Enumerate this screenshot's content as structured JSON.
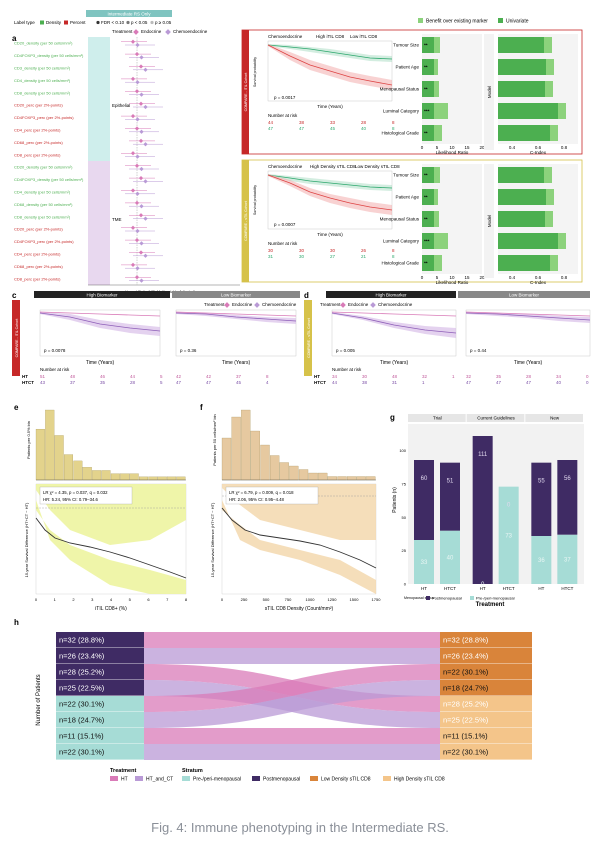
{
  "caption": "Fig. 4: Immune phenotyping in the Intermediate RS.",
  "panel_a": {
    "label": "a",
    "header": "Intermediate RS Only",
    "legend_label_type": "Label type",
    "legend_density": "Density",
    "legend_percent": "Percent",
    "legend_fdr": "FDR < 0.10",
    "legend_p05": "p < 0.05",
    "legend_p005": "p ≥ 0.05",
    "treatment_label": "Treatment",
    "treat_endocrine": "Endocrine",
    "treat_chemo": "Chemoendocrine",
    "group_epithelial": "Epithelial",
    "group_tme": "TME",
    "xaxis_label": "Hazard Ratio (HR; Multivariable Adjusted)",
    "rows": [
      "CD20_density (per 50 cells/mm²)",
      "CD4FOXP3_density (per 50 cells/mm²)",
      "CD3_density (per 50 cells/mm²)",
      "CD4_density (per 50 cells/mm²)",
      "CD8_density (per 50 cells/mm²)",
      "CD20_perc (per 2%-points)",
      "CD4FOXP3_perc (per 2%-points)",
      "CD4_perc (per 2%-points)",
      "CD68_perc (per 2%-points)",
      "CD8_perc (per 2%-points)",
      "CD20_density (per 50 cells/mm²)",
      "CD4FOXP3_density (per 50 cells/mm²)",
      "CD4_density (per 50 cells/mm²)",
      "CD68_density (per 50 cells/mm²)",
      "CD8_density (per 50 cells/mm²)",
      "CD20_perc (per 2%-points)",
      "CD4FOXP3_perc (per 2%-points)",
      "CD4_perc (per 2%-points)",
      "CD68_perc (per 2%-points)",
      "CD8_perc (per 2%-points)"
    ]
  },
  "panel_b": {
    "label": "b",
    "legend_benefit": "Benefit over existing marker",
    "legend_univariate": "Univariate",
    "km_top": {
      "title": "Chemoendocrine",
      "legend_high": "High iTIL CD8",
      "legend_low": "Low iTIL CD8",
      "p_value": "p = 0.0017",
      "side_label": "COMPARE - iTIL Cohort",
      "xlabel": "Time (Years)",
      "ylabel": "Survival probability",
      "risk_title": "Number at risk",
      "risk_high": [
        44,
        38,
        33,
        28,
        8
      ],
      "risk_low": [
        47,
        47,
        45,
        40,
        8
      ]
    },
    "km_bottom": {
      "title": "Chemoendocrine",
      "legend_high": "High Density sTIL CD8",
      "legend_low": "Low Density sTIL CD8",
      "p_value": "p = 0.0007",
      "side_label": "COMPARE - sTIL Cohort",
      "xlabel": "Time (Years)",
      "ylabel": "Survival probability",
      "risk_title": "Number at risk",
      "risk_high": [
        30,
        30,
        30,
        26,
        8
      ],
      "risk_low": [
        31,
        30,
        27,
        21,
        8
      ]
    },
    "lr_categories": [
      "Tumour Size",
      "Patient Age",
      "Menopausal Status",
      "Luminal Category",
      "Histological Grade"
    ],
    "lr_xlabel": "Likelihood Ratio",
    "cidx_xlabel": "C-Index",
    "model_label": "Model",
    "lr_top_stars": [
      "**",
      "**",
      "**",
      "***",
      "**"
    ],
    "lr_bottom_stars": [
      "**",
      "**",
      "**",
      "***",
      "**"
    ],
    "lr_ticks": [
      "0",
      "5",
      "10",
      "15",
      "20"
    ],
    "cidx_ticks": [
      "0.4",
      "0.6",
      "0.8"
    ]
  },
  "panel_c": {
    "label": "c",
    "high_title": "High Biomarker",
    "low_title": "Low Biomarker",
    "treatment_label": "Treatment",
    "treat_endocrine": "Endocrine",
    "treat_chemo": "Chemoendocrine",
    "side_label": "COMPARE - iTIL Cohort",
    "xlabel": "Time (Years)",
    "ylabel": "Survival probability",
    "p_high": "p = 0.0078",
    "p_low": "p = 0.36",
    "risk_title": "Number at risk",
    "risk_row_ht": "HT",
    "risk_row_htct": "HTCT",
    "risk_high_ht": [
      51,
      48,
      46,
      44,
      5
    ],
    "risk_high_htct": [
      43,
      37,
      35,
      28,
      5
    ],
    "risk_low_ht": [
      42,
      42,
      37,
      8
    ],
    "risk_low_htct": [
      47,
      47,
      45,
      4
    ]
  },
  "panel_d": {
    "label": "d",
    "high_title": "High Biomarker",
    "low_title": "Low Biomarker",
    "treatment_label": "Treatment",
    "treat_endocrine": "Endocrine",
    "treat_chemo": "Chemoendocrine",
    "side_label": "COMPARE - sTIL Cohort",
    "xlabel": "Time (Years)",
    "ylabel": "Survival probability",
    "p_high": "p = 0.005",
    "p_low": "p = 0.44",
    "risk_title": "Number at risk",
    "risk_row_ht": "HT",
    "risk_row_htct": "HTCT",
    "risk_high_ht": [
      34,
      30,
      48,
      32,
      1
    ],
    "risk_high_htct": [
      44,
      38,
      31,
      1
    ],
    "risk_low_ht": [
      32,
      35,
      28,
      34,
      0
    ],
    "risk_low_htct": [
      47,
      47,
      47,
      40,
      0
    ]
  },
  "panel_e": {
    "label": "e",
    "hist_ylabel": "Patients per 0.5% bin",
    "stats_line1": "LR χ² = 4.35, p = 0.037, q = 0.032",
    "stats_line2": "HR: 5.24, 95% CI: 0.79–34.6",
    "ylabel": "15-year Survival Difference (HT+CT − HT)",
    "xlabel": "iTIL CD8+ (%)",
    "xticks": [
      "0",
      "1",
      "2",
      "3",
      "4",
      "5",
      "6",
      "7",
      "8"
    ],
    "yticks": [
      "0.2",
      "0.0",
      "-0.2",
      "-0.4",
      "-0.6"
    ]
  },
  "panel_f": {
    "label": "f",
    "hist_ylabel": "Patients per 50 cells/mm² bin",
    "stats_line1": "LR χ² = 6.79, p = 0.009, q = 0.018",
    "stats_line2": "HR: 2.06, 95% CI: 0.95–4.48",
    "ylabel": "15-year Survival Difference (HT+CT − HT)",
    "xlabel": "sTIL CD8 Density (Count/mm²)",
    "xticks": [
      "0",
      "250",
      "500",
      "750",
      "1000",
      "1250",
      "1500",
      "1750"
    ],
    "yticks": [
      "0.0",
      "-0.2",
      "-0.4",
      "-0.6"
    ]
  },
  "panel_g": {
    "label": "g",
    "groups": [
      "Trial",
      "Current Guidelines",
      "New"
    ],
    "ylabel": "Patients (n)",
    "xlabel": "Treatment",
    "legend_title": "Menopausal status",
    "legend_post": "Postmenopausal",
    "legend_pre": "Pre-/peri-menopausal",
    "yticks": [
      "0",
      "25",
      "50",
      "75",
      "100"
    ],
    "chart_data": {
      "type": "bar",
      "categories": [
        "HT",
        "HTCT",
        "HT",
        "HTCT",
        "HT",
        "HTCT"
      ],
      "series": [
        {
          "name": "Postmenopausal",
          "values": [
            60,
            51,
            111,
            0,
            55,
            56
          ]
        },
        {
          "name": "Pre-/peri-menopausal",
          "values": [
            33,
            40,
            0,
            73,
            36,
            37
          ]
        }
      ],
      "ylim": [
        0,
        120
      ]
    }
  },
  "panel_h": {
    "label": "h",
    "ylabel": "Number of Patients",
    "left_labels": [
      "n=32 (28.8%)",
      "n=26 (23.4%)",
      "n=28 (25.2%)",
      "n=25 (22.5%)",
      "n=22 (30.1%)",
      "n=18 (24.7%)",
      "n=11 (15.1%)",
      "n=22 (30.1%)"
    ],
    "right_labels": [
      "n=32 (28.8%)",
      "n=26 (23.4%)",
      "n=22 (30.1%)",
      "n=18 (24.7%)",
      "n=28 (25.2%)",
      "n=25 (22.5%)",
      "n=11 (15.1%)",
      "n=22 (30.1%)"
    ],
    "legend_treatment": "Treatment",
    "legend_ht": "HT",
    "legend_htct": "HT_and_CT",
    "legend_stratum": "Stratum",
    "legend_pre": "Pre-/peri-menopausal",
    "legend_post": "Postmenopausal",
    "legend_low": "Low Density sTIL CD8",
    "legend_high": "High Density sTIL CD8"
  },
  "colors": {
    "teal": "#a6dcd6",
    "purple_dark": "#3f2b64",
    "orange": "#d9843a",
    "orange_light": "#f4c58a",
    "pink": "#d97bb8",
    "lavender": "#b99ad6",
    "green": "#4caf50",
    "red": "#c62828",
    "olive": "#d6c24a"
  }
}
